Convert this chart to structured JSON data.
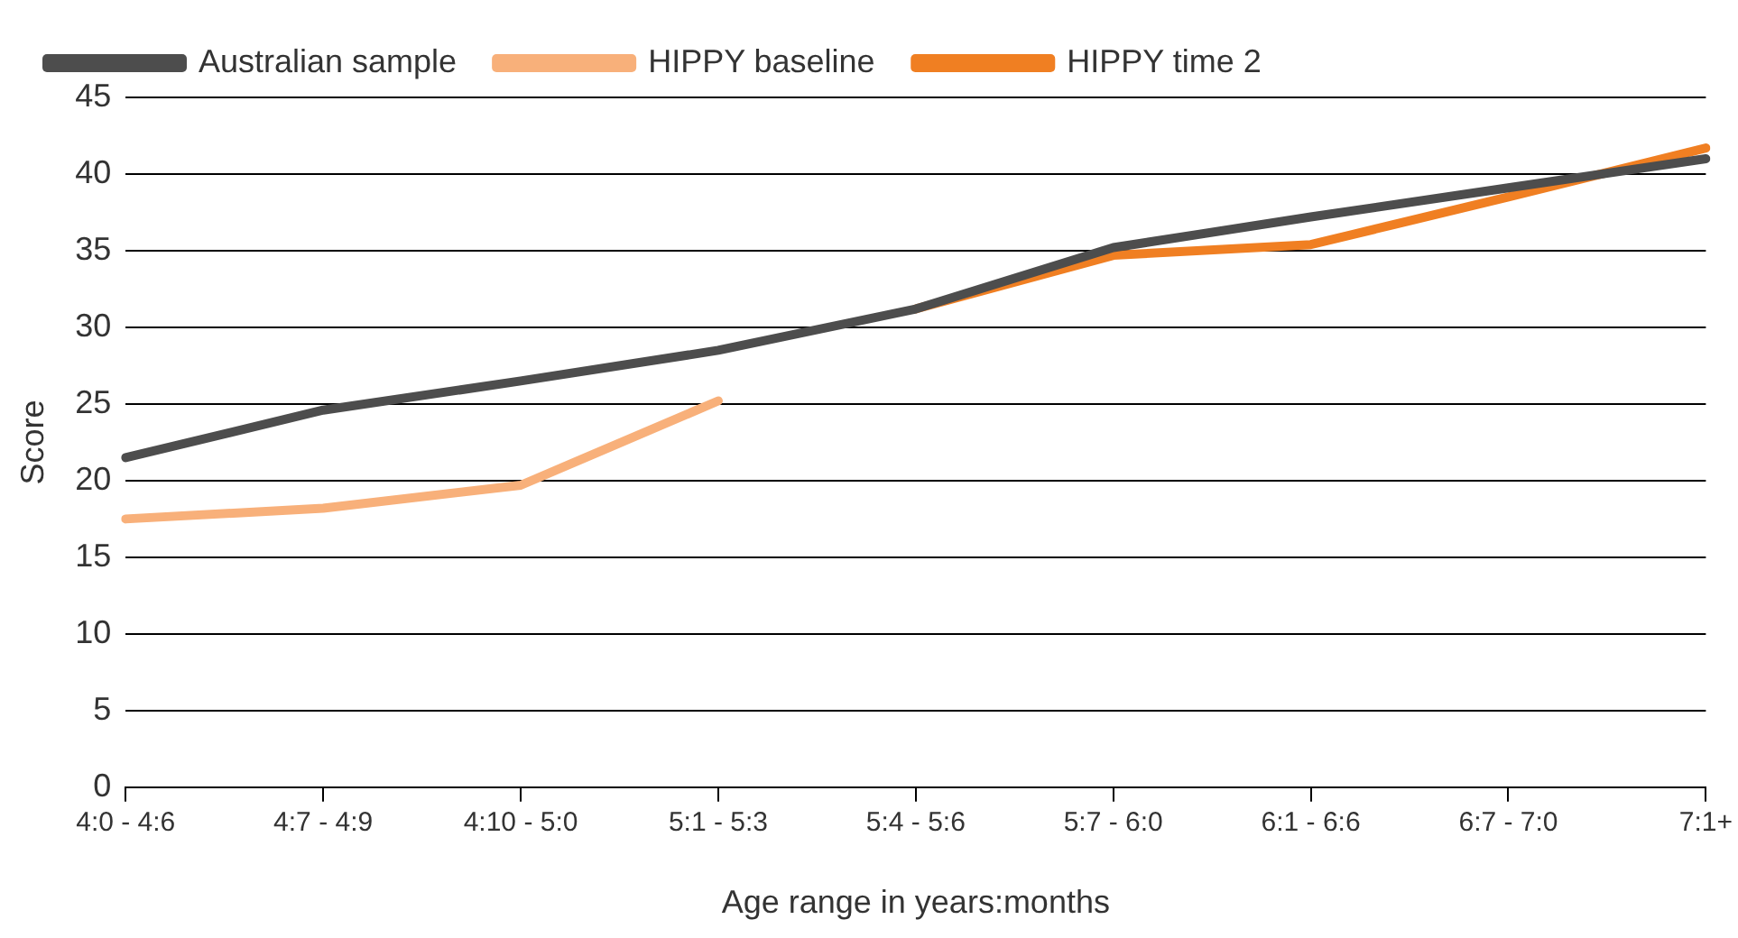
{
  "chart_data": {
    "type": "line",
    "xlabel": "Age range in years:months",
    "ylabel": "Score",
    "categories": [
      "4:0 - 4:6",
      "4:7 - 4:9",
      "4:10 - 5:0",
      "5:1 - 5:3",
      "5:4 - 5:6",
      "5:7 - 6:0",
      "6:1 - 6:6",
      "6:7 - 7:0",
      "7:1+"
    ],
    "series": [
      {
        "name": "Australian sample",
        "color": "#4d4d4d",
        "values": [
          21.5,
          24.6,
          26.5,
          28.5,
          31.2,
          35.2,
          37.2,
          39.1,
          41
        ]
      },
      {
        "name": "HIPPY baseline",
        "color": "#f8b07a",
        "values": [
          17.5,
          18.2,
          19.7,
          25.2,
          null,
          null,
          null,
          null,
          null
        ]
      },
      {
        "name": "HIPPY time 2",
        "color": "#f07f22",
        "values": [
          null,
          null,
          null,
          null,
          31.2,
          34.7,
          35.4,
          38.5,
          41.7
        ]
      }
    ],
    "ylim": [
      0,
      45
    ],
    "yticks": [
      0,
      5,
      10,
      15,
      20,
      25,
      30,
      35,
      40,
      45
    ],
    "grid": "y",
    "legend": "top",
    "marker": "none",
    "line_style": "solid"
  }
}
